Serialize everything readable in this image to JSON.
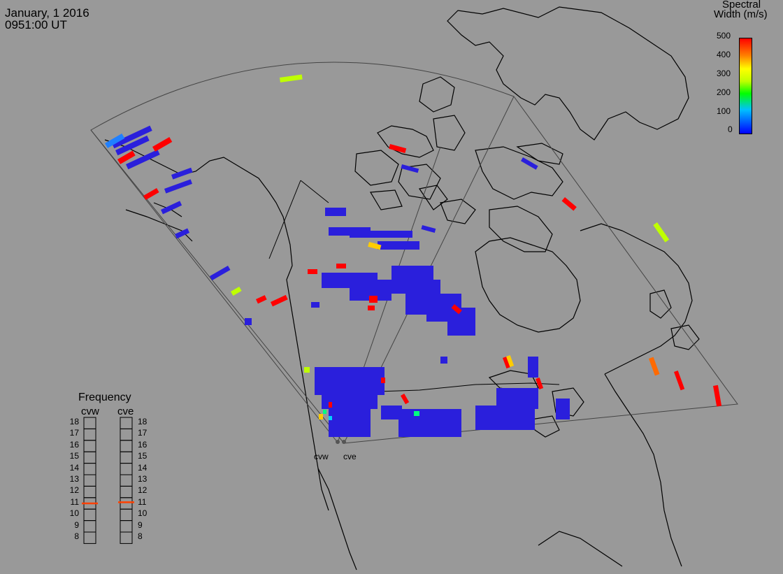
{
  "header": {
    "date": "January, 1 2016",
    "time": "0951:00 UT"
  },
  "colorbar": {
    "title_line1": "Spectral",
    "title_line2": "Width (m/s)",
    "ticks": [
      "500",
      "400",
      "300",
      "200",
      "100",
      "0"
    ],
    "range": [
      0,
      500
    ],
    "gradient": [
      "#0000ff",
      "#00bfff",
      "#00ff00",
      "#bfff00",
      "#ffff00",
      "#ff8000",
      "#ff0000"
    ]
  },
  "frequency_panel": {
    "title": "Frequency",
    "radars": [
      {
        "name": "cvw",
        "frequency_mhz": 10.5
      },
      {
        "name": "cve",
        "frequency_mhz": 10.6
      }
    ],
    "scale": [
      "18",
      "17",
      "16",
      "15",
      "14",
      "13",
      "12",
      "11",
      "10",
      "9",
      "8"
    ],
    "marker_color": "#ff4000"
  },
  "map": {
    "background": "#999999",
    "fov_color": "#444444",
    "land_outline_color": "#000000",
    "radar_site_labels": [
      "cvw",
      "cve"
    ],
    "scatter_colors": {
      "low": "#0000ff",
      "mid": "#bfff00",
      "high": "#ff0000"
    }
  }
}
